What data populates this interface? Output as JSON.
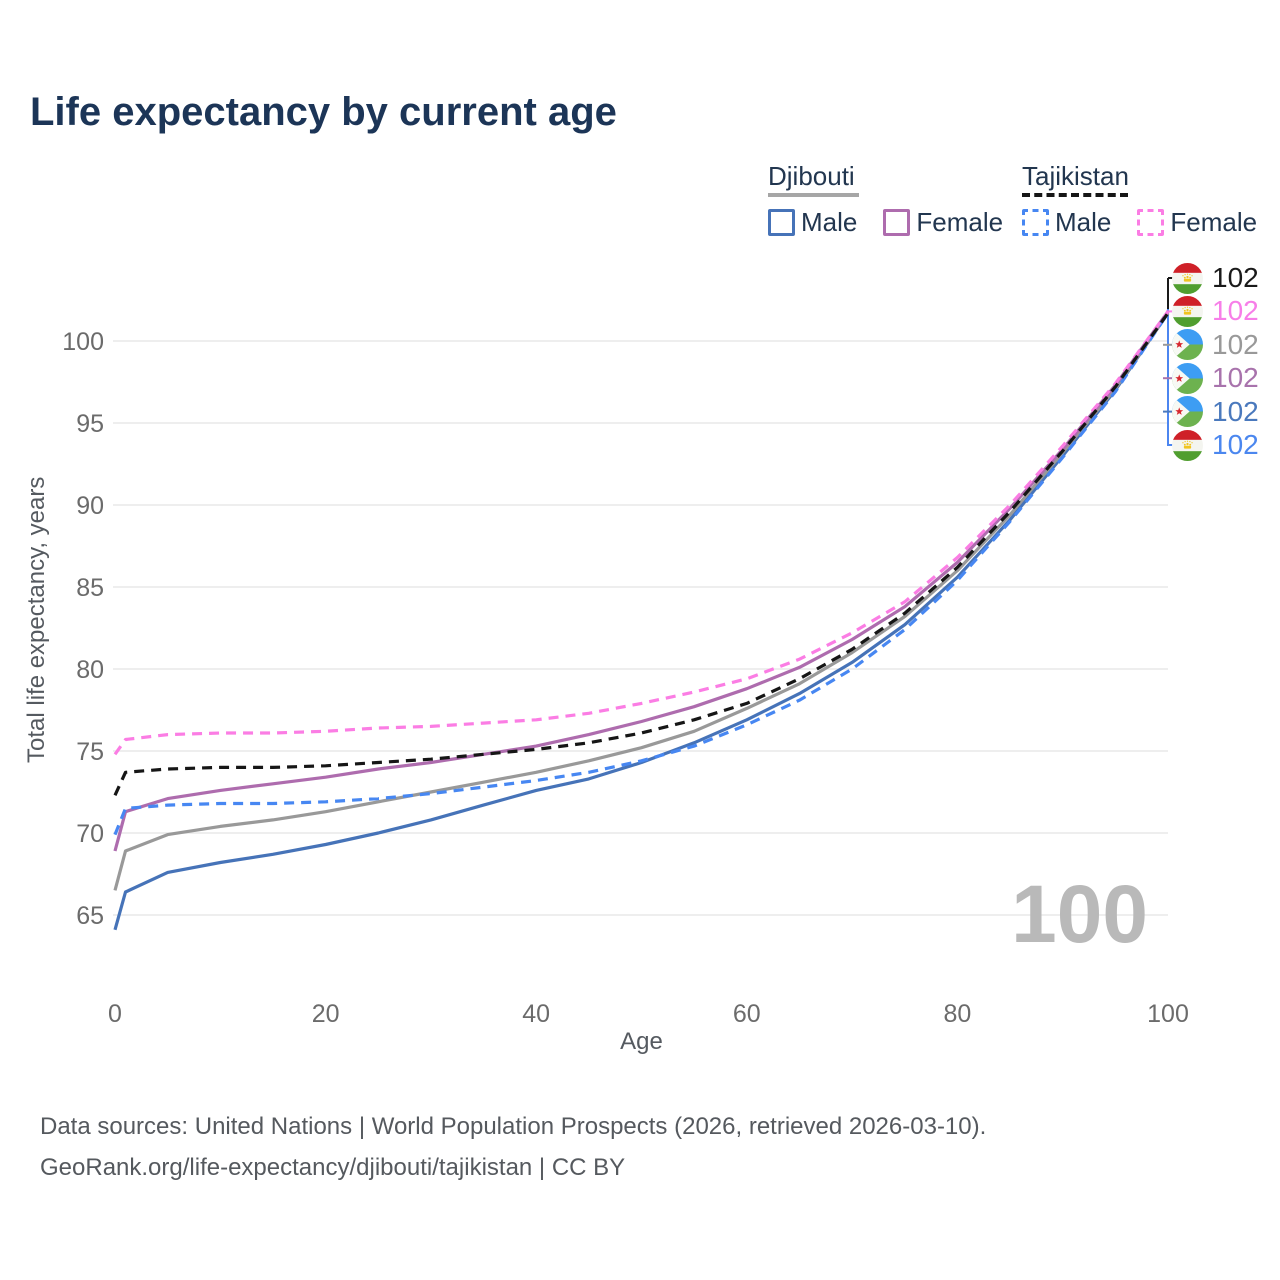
{
  "title": "Life expectancy by current age",
  "legend": {
    "groups": [
      {
        "label": "Djibouti",
        "underline_color": "#a6a6a6",
        "underline_style": "solid",
        "items": [
          {
            "label": "Male",
            "color": "#4673b8",
            "dashed": false
          },
          {
            "label": "Female",
            "color": "#ae6cae",
            "dashed": false
          }
        ]
      },
      {
        "label": "Tajikistan",
        "underline_color": "#161616",
        "underline_style": "dashed",
        "items": [
          {
            "label": "Male",
            "color": "#4787f2",
            "dashed": true
          },
          {
            "label": "Female",
            "color": "#fb7de4",
            "dashed": true
          }
        ]
      }
    ]
  },
  "chart_data": {
    "type": "line",
    "title": "Life expectancy by current age",
    "xlabel": "Age",
    "ylabel": "Total life expectancy, years",
    "xlim": [
      0,
      100
    ],
    "ylim": [
      62,
      103
    ],
    "x_ticks": [
      0,
      20,
      40,
      60,
      80,
      100
    ],
    "y_ticks": [
      65,
      70,
      75,
      80,
      85,
      90,
      95,
      100
    ],
    "grid": "horizontal",
    "legend_position": "top-right",
    "watermark": "100",
    "x": [
      0,
      1,
      5,
      10,
      15,
      20,
      25,
      30,
      35,
      40,
      45,
      50,
      55,
      60,
      65,
      70,
      75,
      80,
      85,
      90,
      95,
      100
    ],
    "series": [
      {
        "name": "Djibouti Male",
        "country": "Djibouti",
        "sex": "Male",
        "color": "#4673b8",
        "dashed": false,
        "values": [
          64.1,
          66.4,
          67.6,
          68.2,
          68.7,
          69.3,
          70.0,
          70.8,
          71.7,
          72.6,
          73.3,
          74.3,
          75.5,
          76.9,
          78.5,
          80.4,
          82.7,
          85.6,
          89.1,
          93.0,
          97.0,
          101.7
        ]
      },
      {
        "name": "Djibouti Both sexes",
        "country": "Djibouti",
        "sex": "Both",
        "color": "#999999",
        "dashed": false,
        "values": [
          66.5,
          68.9,
          69.9,
          70.4,
          70.8,
          71.3,
          71.9,
          72.5,
          73.1,
          73.7,
          74.4,
          75.2,
          76.2,
          77.6,
          79.1,
          81.0,
          83.2,
          86.0,
          89.4,
          93.2,
          97.1,
          101.7
        ]
      },
      {
        "name": "Djibouti Female",
        "country": "Djibouti",
        "sex": "Female",
        "color": "#ae6cae",
        "dashed": false,
        "values": [
          68.9,
          71.3,
          72.1,
          72.6,
          73.0,
          73.4,
          73.9,
          74.3,
          74.8,
          75.3,
          76.0,
          76.8,
          77.7,
          78.8,
          80.1,
          81.8,
          83.8,
          86.5,
          89.8,
          93.4,
          97.3,
          101.8
        ]
      },
      {
        "name": "Tajikistan Male",
        "country": "Tajikistan",
        "sex": "Male",
        "color": "#4787f2",
        "dashed": true,
        "values": [
          69.9,
          71.5,
          71.7,
          71.8,
          71.8,
          71.9,
          72.1,
          72.4,
          72.8,
          73.2,
          73.7,
          74.4,
          75.3,
          76.6,
          78.1,
          80.0,
          82.4,
          85.4,
          89.0,
          92.9,
          96.9,
          101.7
        ]
      },
      {
        "name": "Tajikistan Female",
        "country": "Tajikistan",
        "sex": "Female",
        "color": "#fb7de4",
        "dashed": true,
        "values": [
          74.8,
          75.7,
          76.0,
          76.1,
          76.1,
          76.2,
          76.4,
          76.5,
          76.7,
          76.9,
          77.3,
          77.9,
          78.6,
          79.4,
          80.6,
          82.2,
          84.1,
          86.8,
          90.0,
          93.6,
          97.4,
          101.8
        ]
      },
      {
        "name": "Tajikistan Both sexes",
        "country": "Tajikistan",
        "sex": "Both",
        "color": "#161616",
        "dashed": true,
        "values": [
          72.3,
          73.7,
          73.9,
          74.0,
          74.0,
          74.1,
          74.3,
          74.5,
          74.8,
          75.1,
          75.5,
          76.1,
          76.9,
          77.9,
          79.4,
          81.2,
          83.4,
          86.2,
          89.6,
          93.3,
          97.2,
          101.7
        ]
      }
    ],
    "end_labels": [
      {
        "value": "102",
        "flag": "tajikistan",
        "color": "#1a1a1a",
        "series": "Tajikistan Both sexes"
      },
      {
        "value": "102",
        "flag": "tajikistan",
        "color": "#f77ee8",
        "series": "Tajikistan Female"
      },
      {
        "value": "102",
        "flag": "djibouti",
        "color": "#999999",
        "series": "Djibouti Both sexes"
      },
      {
        "value": "102",
        "flag": "djibouti",
        "color": "#a873ac",
        "series": "Djibouti Female"
      },
      {
        "value": "102",
        "flag": "djibouti",
        "color": "#4a79bd",
        "series": "Djibouti Male"
      },
      {
        "value": "102",
        "flag": "tajikistan",
        "color": "#4b87ef",
        "series": "Tajikistan Male"
      }
    ]
  },
  "footer": {
    "line1": "Data sources: United Nations | World Population Prospects (2026, retrieved 2026-03-10).",
    "line2": "GeoRank.org/life-expectancy/djibouti/tajikistan | CC BY"
  }
}
